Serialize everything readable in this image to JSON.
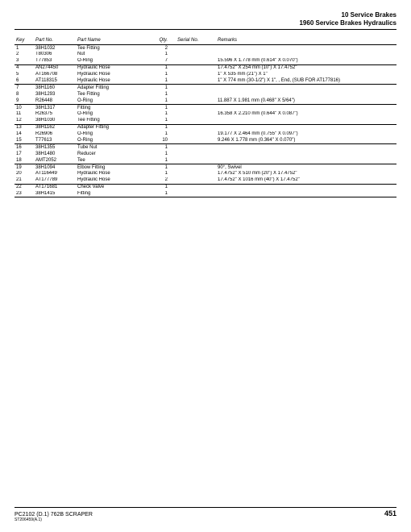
{
  "header": {
    "line1": "10 Service Brakes",
    "line2": "1960 Service Brakes Hydraulics"
  },
  "columns": {
    "key": "Key",
    "partNo": "Part No.",
    "partName": "Part Name",
    "qty": "Qty.",
    "serial": "Serial No.",
    "remarks": "Remarks"
  },
  "rows": [
    {
      "key": "1",
      "partNo": "38H1032",
      "name": "Tee Fitting",
      "qty": "2",
      "serial": "",
      "remarks": ""
    },
    {
      "key": "2",
      "partNo": "T80306",
      "name": "Nut",
      "qty": "1",
      "serial": "",
      "remarks": ""
    },
    {
      "key": "3",
      "partNo": "T77853",
      "name": "O-Ring",
      "qty": "7",
      "serial": "",
      "remarks": "15.596 X 1.778 mm (0.614\" X 0.070\")",
      "groupEnd": true
    },
    {
      "key": "4",
      "partNo": "AN274450",
      "name": "Hydraulic Hose",
      "qty": "1",
      "serial": "",
      "remarks": "17.4752\" X 254 mm (10\") X 17.4752\""
    },
    {
      "key": "5",
      "partNo": "AT166708",
      "name": "Hydraulic Hose",
      "qty": "1",
      "serial": "",
      "remarks": "1\" X 535 mm (21\") X 1\""
    },
    {
      "key": "6",
      "partNo": "AT118315",
      "name": "Hydraulic Hose",
      "qty": "1",
      "serial": "",
      "remarks": "1\" X 774 mm (30-1/2\") X 1\", , End, (SUB FOR AT177816)",
      "groupEnd": true
    },
    {
      "key": "7",
      "partNo": "38H1160",
      "name": "Adapter Fitting",
      "qty": "1",
      "serial": "",
      "remarks": ""
    },
    {
      "key": "8",
      "partNo": "38H1293",
      "name": "Tee Fitting",
      "qty": "1",
      "serial": "",
      "remarks": ""
    },
    {
      "key": "9",
      "partNo": "R26448",
      "name": "O-Ring",
      "qty": "1",
      "serial": "",
      "remarks": "11.887 X 1.981 mm (0.468\" X 5/64\")",
      "groupEnd": true
    },
    {
      "key": "10",
      "partNo": "38H1317",
      "name": "Fitting",
      "qty": "1",
      "serial": "",
      "remarks": ""
    },
    {
      "key": "11",
      "partNo": "R26375",
      "name": "O-Ring",
      "qty": "1",
      "serial": "",
      "remarks": "16.358 X 2.210 mm (0.644\" X 0.087\")"
    },
    {
      "key": "12",
      "partNo": "38H1030",
      "name": "Tee Fitting",
      "qty": "1",
      "serial": "",
      "remarks": "",
      "groupEnd": true
    },
    {
      "key": "13",
      "partNo": "38H1162",
      "name": "Adapter Fitting",
      "qty": "1",
      "serial": "",
      "remarks": ""
    },
    {
      "key": "14",
      "partNo": "R26906",
      "name": "O-Ring",
      "qty": "1",
      "serial": "",
      "remarks": "19.177 X 2.464 mm (0.755\" X 0.097\")"
    },
    {
      "key": "15",
      "partNo": "T77613",
      "name": "O-Ring",
      "qty": "10",
      "serial": "",
      "remarks": "9.246 X 1.778 mm (0.364\" X 0.070\")",
      "groupEnd": true
    },
    {
      "key": "16",
      "partNo": "38H1355",
      "name": "Tube Nut",
      "qty": "1",
      "serial": "",
      "remarks": ""
    },
    {
      "key": "17",
      "partNo": "38H1480",
      "name": "Reducer",
      "qty": "1",
      "serial": "",
      "remarks": ""
    },
    {
      "key": "18",
      "partNo": "AMT2052",
      "name": "Tee",
      "qty": "1",
      "serial": "",
      "remarks": "",
      "groupEnd": true
    },
    {
      "key": "19",
      "partNo": "38H1094",
      "name": "Elbow Fitting",
      "qty": "1",
      "serial": "",
      "remarks": "90°, Swivel"
    },
    {
      "key": "20",
      "partNo": "AT116449",
      "name": "Hydraulic Hose",
      "qty": "1",
      "serial": "",
      "remarks": "17.4752\" X 510 mm (20\") X 17.4752\""
    },
    {
      "key": "21",
      "partNo": "AT177789",
      "name": "Hydraulic Hose",
      "qty": "2",
      "serial": "",
      "remarks": "17.4752\" X 1016 mm (40\") X 17.4752\"",
      "groupEnd": true
    },
    {
      "key": "22",
      "partNo": "AT171681",
      "name": "Check Valve",
      "qty": "1",
      "serial": "",
      "remarks": ""
    },
    {
      "key": "23",
      "partNo": "38H1415",
      "name": "Fitting",
      "qty": "1",
      "serial": "",
      "remarks": "",
      "groupEnd": true
    }
  ],
  "footer": {
    "code": "PC2102  (D.1)   762B SCRAPER",
    "sub": "ST206459(A.1)",
    "page": "451"
  }
}
